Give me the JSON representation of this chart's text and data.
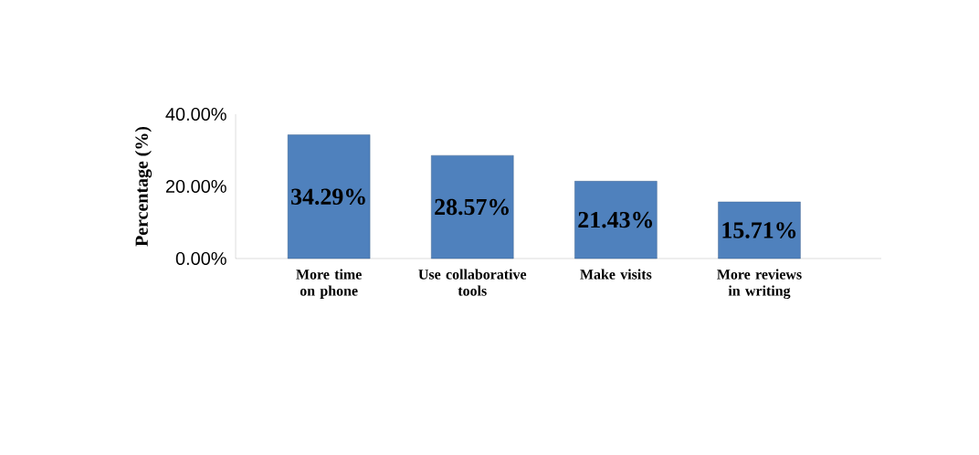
{
  "chart_data": {
    "type": "bar",
    "ylabel": "Percentage (%)",
    "categories": [
      "More time on phone",
      "Use collaborative tools",
      "Make visits",
      "More reviews in writing"
    ],
    "values": [
      34.29,
      28.57,
      21.43,
      15.71
    ],
    "value_labels": [
      "34.29%",
      "28.57%",
      "21.43%",
      "15.71%"
    ],
    "color": "#4f81bd",
    "ylim": [
      0,
      40
    ],
    "yticks": [
      {
        "value": 0,
        "label": "0.00%"
      },
      {
        "value": 20,
        "label": "20.00%"
      },
      {
        "value": 40,
        "label": "40.00%"
      }
    ]
  }
}
